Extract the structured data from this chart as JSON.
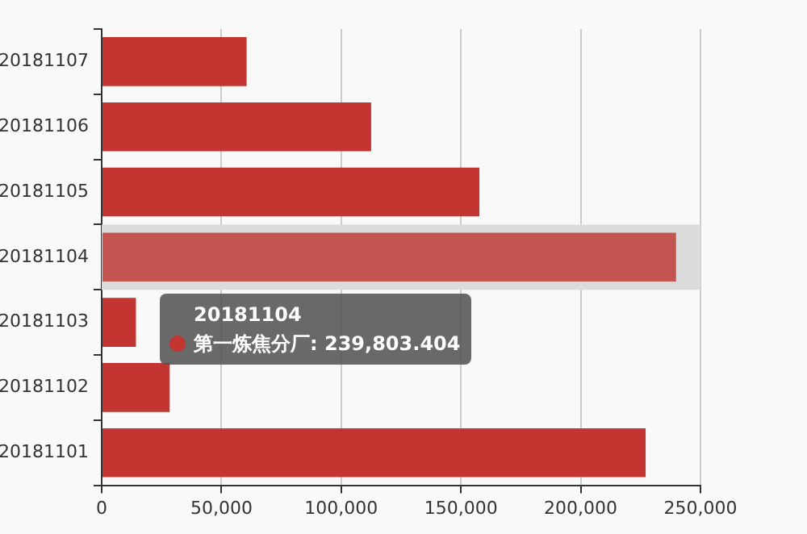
{
  "chart_data": {
    "type": "bar",
    "orientation": "horizontal",
    "categories": [
      "20181107",
      "20181106",
      "20181105",
      "20181104",
      "20181103",
      "20181102",
      "20181101"
    ],
    "series": [
      {
        "color": "#c23531",
        "colors": [
          "#c23531",
          "#c23531",
          "#c23531",
          "#c45450",
          "#c23531",
          "#c23531",
          "#c23531"
        ],
        "values": [
          60500,
          112500,
          157700,
          239803.404,
          14300,
          28400,
          227100
        ]
      }
    ],
    "xlim": [
      0,
      250000
    ],
    "xticks": [
      {
        "value": 0,
        "label": "0"
      },
      {
        "value": 50000,
        "label": "50,000"
      },
      {
        "value": 100000,
        "label": "100,000"
      },
      {
        "value": 150000,
        "label": "150,000"
      },
      {
        "value": 200000,
        "label": "200,000"
      },
      {
        "value": 250000,
        "label": "250,000"
      }
    ],
    "grid": "x",
    "legend": false,
    "bands": [
      {
        "axis": "y",
        "from": "20181104",
        "to": "20181104",
        "color": "#dcdcdc"
      }
    ],
    "annotations": [
      "20181104\n第一炼焦分厂: 239,803.404"
    ]
  }
}
